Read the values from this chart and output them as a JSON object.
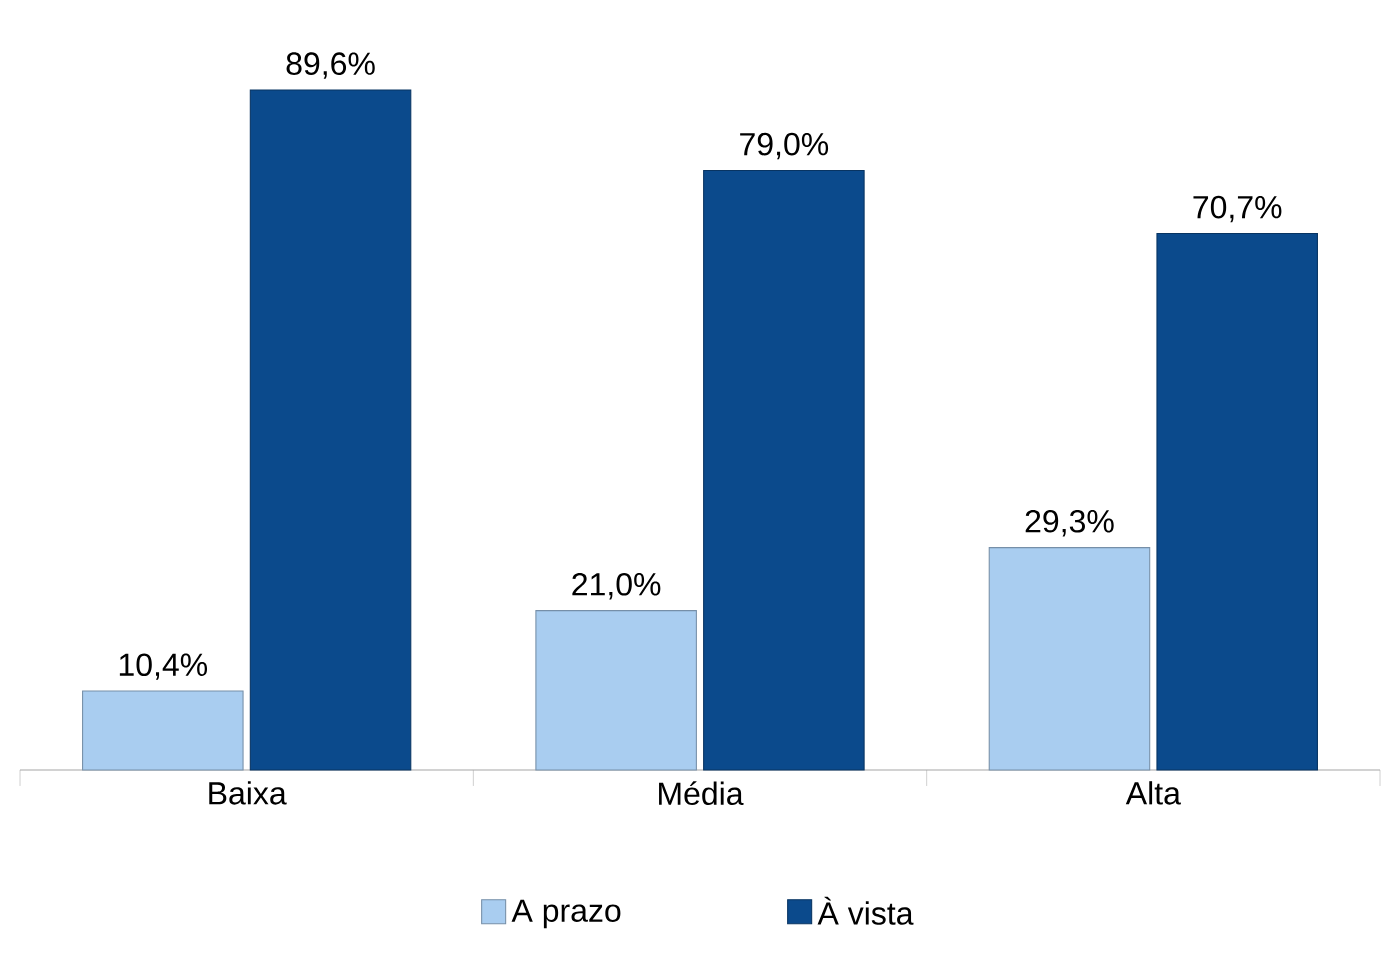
{
  "chart_data": {
    "type": "bar",
    "categories": [
      "Baixa",
      "Média",
      "Alta"
    ],
    "series": [
      {
        "name": "A prazo",
        "color": "#a9cdf0",
        "values": [
          10.4,
          21.0,
          29.3
        ],
        "value_labels": [
          "10,4%",
          "21,0%",
          "29,3%"
        ]
      },
      {
        "name": "À vista",
        "color": "#0b4a8c",
        "values": [
          89.6,
          79.0,
          70.7
        ],
        "value_labels": [
          "89,6%",
          "79,0%",
          "70,7%"
        ]
      }
    ],
    "legend": "bottom"
  }
}
